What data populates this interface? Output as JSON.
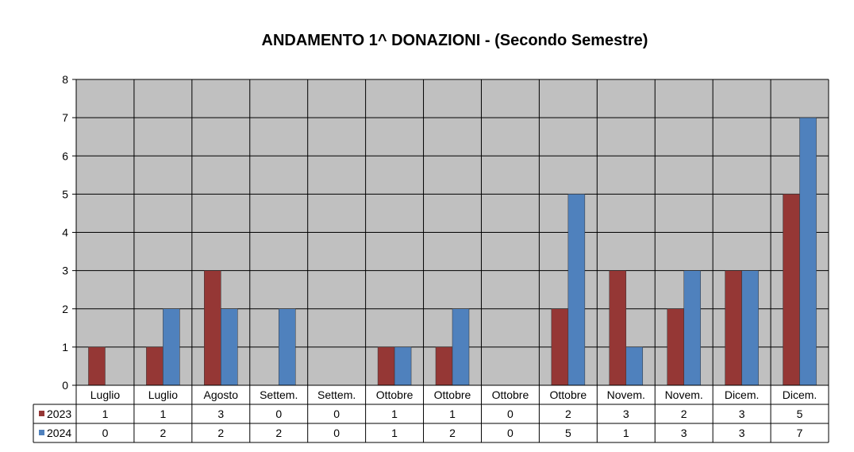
{
  "chart_data": {
    "type": "bar",
    "title": "ANDAMENTO 1^ DONAZIONI  -  (Secondo Semestre)",
    "categories": [
      "Luglio",
      "Luglio",
      "Agosto",
      "Settem.",
      "Settem.",
      "Ottobre",
      "Ottobre",
      "Ottobre",
      "Ottobre",
      "Novem.",
      "Novem.",
      "Dicem.",
      "Dicem."
    ],
    "series": [
      {
        "name": "2023",
        "color": "#953735",
        "values": [
          1,
          1,
          3,
          0,
          0,
          1,
          1,
          0,
          2,
          3,
          2,
          3,
          5
        ]
      },
      {
        "name": "2024",
        "color": "#4f81bd",
        "values": [
          0,
          2,
          2,
          2,
          0,
          1,
          2,
          0,
          5,
          1,
          3,
          3,
          7
        ]
      }
    ],
    "ylim": [
      0,
      8
    ],
    "yticks": [
      0,
      1,
      2,
      3,
      4,
      5,
      6,
      7,
      8
    ],
    "grid": true,
    "plot_background": "#c0c0c0",
    "legend": "data-table"
  }
}
